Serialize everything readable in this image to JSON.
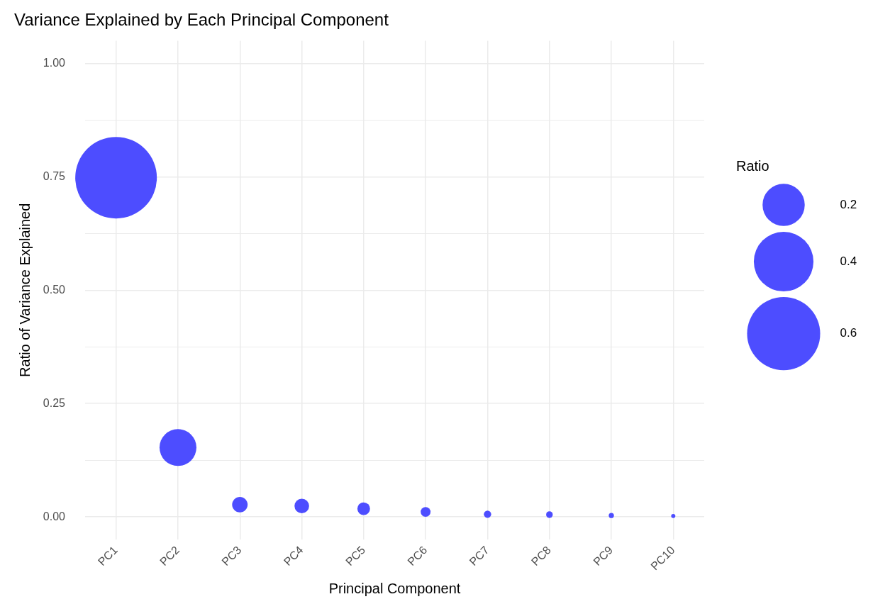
{
  "chart_data": {
    "type": "bubble",
    "title": "Variance Explained by Each Principal Component",
    "xlabel": "Principal Component",
    "ylabel": "Ratio of Variance Explained",
    "legend_title": "Ratio",
    "categories": [
      "PC1",
      "PC2",
      "PC3",
      "PC4",
      "PC5",
      "PC6",
      "PC7",
      "PC8",
      "PC9",
      "PC10"
    ],
    "series": [
      {
        "color": "#4d4dff",
        "values": [
          0.748,
          0.153,
          0.027,
          0.024,
          0.018,
          0.011,
          0.006,
          0.005,
          0.003,
          0.002
        ],
        "sizes": [
          0.748,
          0.153,
          0.027,
          0.024,
          0.018,
          0.011,
          0.006,
          0.005,
          0.003,
          0.002
        ]
      }
    ],
    "size_legend": [
      0.2,
      0.4,
      0.6
    ],
    "ylim": [
      -0.05,
      1.05
    ],
    "yticks": [
      {
        "value": 0,
        "label": "0.00"
      },
      {
        "value": 0.125,
        "label": null
      },
      {
        "value": 0.25,
        "label": "0.25"
      },
      {
        "value": 0.375,
        "label": null
      },
      {
        "value": 0.5,
        "label": "0.50"
      },
      {
        "value": 0.625,
        "label": null
      },
      {
        "value": 0.75,
        "label": "0.75"
      },
      {
        "value": 0.875,
        "label": null
      },
      {
        "value": 1,
        "label": "1.00"
      }
    ],
    "grid": true
  }
}
